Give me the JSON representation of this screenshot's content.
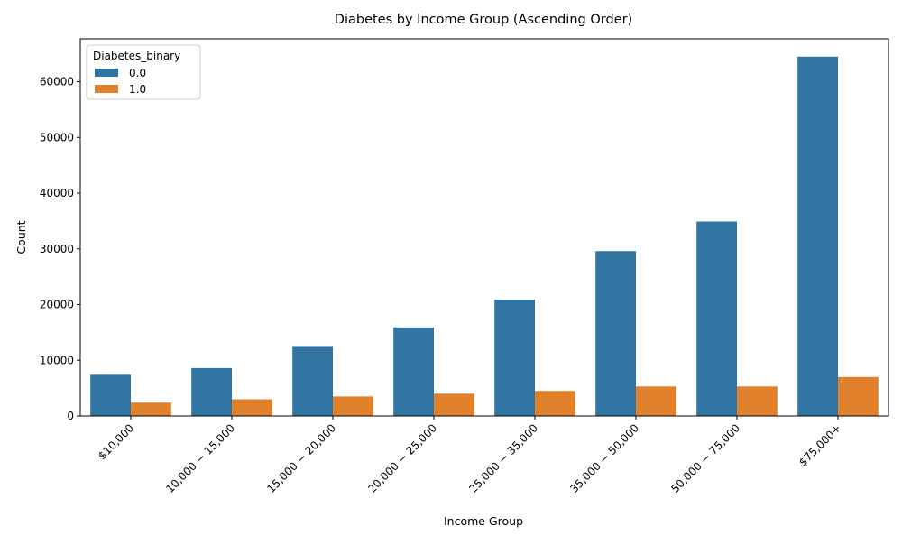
{
  "chart_data": {
    "type": "bar",
    "title": "Diabetes by Income Group (Ascending Order)",
    "xlabel": "Income Group",
    "ylabel": "Count",
    "ylim": [
      0,
      67700
    ],
    "yticks": [
      0,
      10000,
      20000,
      30000,
      40000,
      50000,
      60000
    ],
    "grid": false,
    "legend": {
      "title": "Diabetes_binary",
      "placement": "top-left"
    },
    "categories": [
      "$10,000",
      "10,000 − 15,000",
      "15,000 − 20,000",
      "20,000 − 25,000",
      "25,000 − 35,000",
      "35,000 − 50,000",
      "50,000 − 75,000",
      "$75,000+"
    ],
    "series": [
      {
        "name": "0.0",
        "color": "#3274a1",
        "values": [
          7400,
          8600,
          12400,
          15900,
          20900,
          29600,
          34900,
          64500
        ]
      },
      {
        "name": "1.0",
        "color": "#e1812c",
        "values": [
          2400,
          3000,
          3500,
          4000,
          4500,
          5300,
          5300,
          7000
        ]
      }
    ]
  }
}
